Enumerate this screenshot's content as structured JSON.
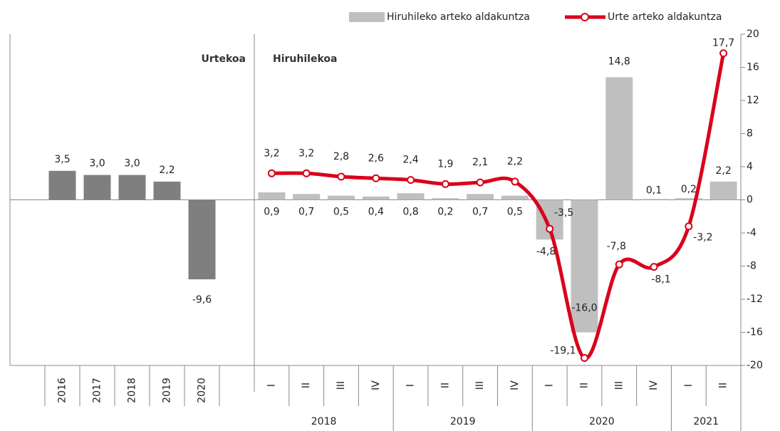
{
  "chart_data": {
    "type": "bar",
    "ylim": [
      -20,
      20
    ],
    "yticks": [
      -20,
      -16,
      -12,
      -8,
      -4,
      0,
      4,
      8,
      12,
      16,
      20
    ],
    "annual": {
      "label": "Urtekoa",
      "color": "#7f7f7f",
      "categories": [
        "2016",
        "2017",
        "2018",
        "2019",
        "2020"
      ],
      "values": [
        3.5,
        3.0,
        3.0,
        2.2,
        -9.6
      ],
      "value_labels": [
        "3,5",
        "3,0",
        "3,0",
        "2,2",
        "-9,6"
      ]
    },
    "quarterly": {
      "label": "Hiruhilekoa",
      "groups": [
        {
          "name": "2018",
          "categories": [
            "I",
            "II",
            "III",
            "IV"
          ]
        },
        {
          "name": "2019",
          "categories": [
            "I",
            "II",
            "III",
            "IV"
          ]
        },
        {
          "name": "2020",
          "categories": [
            "I",
            "II",
            "III",
            "IV"
          ]
        },
        {
          "name": "2021",
          "categories": [
            "I",
            "II"
          ]
        }
      ],
      "series": [
        {
          "name": "Hiruhileko arteko aldakuntza",
          "type": "bar",
          "color": "#bfbfbf",
          "values": [
            0.9,
            0.7,
            0.5,
            0.4,
            0.8,
            0.2,
            0.7,
            0.5,
            -4.8,
            -16.0,
            14.8,
            0.1,
            0.2,
            2.2
          ],
          "value_labels": [
            "0,9",
            "0,7",
            "0,5",
            "0,4",
            "0,8",
            "0,2",
            "0,7",
            "0,5",
            "-4,8",
            "-16,0",
            "14,8",
            "0,1",
            "0,2",
            "2,2"
          ]
        },
        {
          "name": "Urte arteko aldakuntza",
          "type": "line",
          "color": "#d9001b",
          "values": [
            3.2,
            3.2,
            2.8,
            2.6,
            2.4,
            1.9,
            2.1,
            2.2,
            -3.5,
            -19.1,
            -7.8,
            -8.1,
            -3.2,
            17.7
          ],
          "value_labels": [
            "3,2",
            "3,2",
            "2,8",
            "2,6",
            "2,4",
            "1,9",
            "2,1",
            "2,2",
            "-3,5",
            "-19,1",
            "-7,8",
            "-8,1",
            "-3,2",
            "17,7"
          ]
        }
      ]
    }
  }
}
